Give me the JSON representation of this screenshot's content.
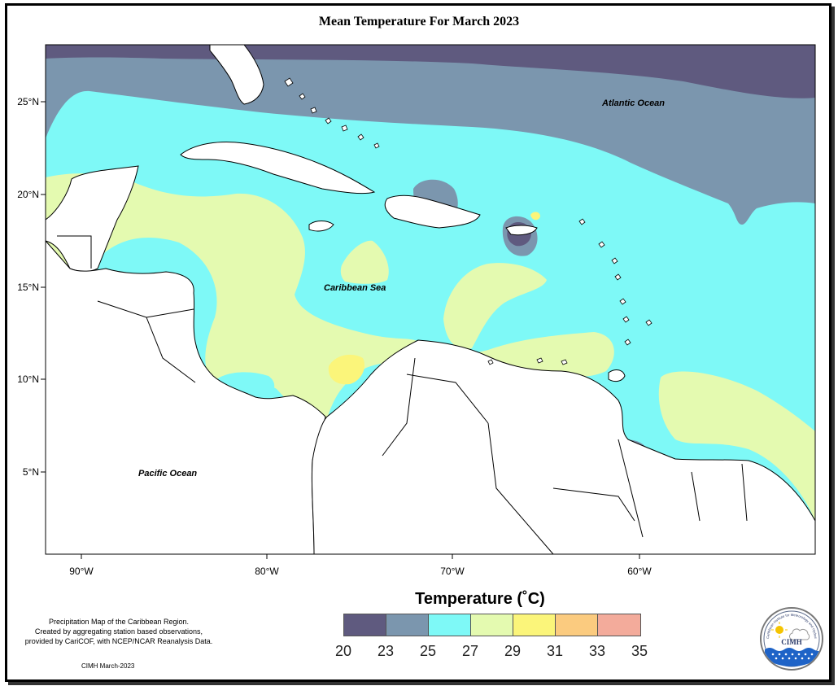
{
  "title": "Mean Temperature For March 2023",
  "labels": {
    "atlantic": "Atlantic Ocean",
    "caribbean": "Caribbean Sea",
    "pacific": "Pacific Ocean"
  },
  "axes": {
    "lat_ticks": [
      "25°N",
      "20°N",
      "15°N",
      "10°N",
      "5°N"
    ],
    "lon_ticks": [
      "90°W",
      "80°W",
      "70°W",
      "60°W"
    ]
  },
  "legend": {
    "title": "Temperature (˚C)",
    "ticks": [
      "20",
      "23",
      "25",
      "27",
      "29",
      "31",
      "33",
      "35"
    ],
    "colors": [
      "#5f5a7f",
      "#7b96ae",
      "#7ef9f7",
      "#e4fab0",
      "#fbf57a",
      "#fbcb7f",
      "#f3ab9b"
    ]
  },
  "footer": {
    "note_line1": "Precipitation Map of the Caribbean Region.",
    "note_line2": "Created by aggregating station based observations,",
    "note_line3": "provided by CariCOF, with NCEP/NCAR Reanalysis Data.",
    "credit": "CIMH March-2023",
    "logo_text": "CIMH",
    "logo_ring_text": "Caribbean Institute for Meteorology and Hydrology"
  },
  "colors": {
    "band_20_23": "#5f5a7f",
    "band_23_25": "#7b96ae",
    "band_25_27": "#7ef9f7",
    "band_27_29": "#e4fab0",
    "band_29_31": "#fbf57a",
    "land": "#ffffff"
  }
}
